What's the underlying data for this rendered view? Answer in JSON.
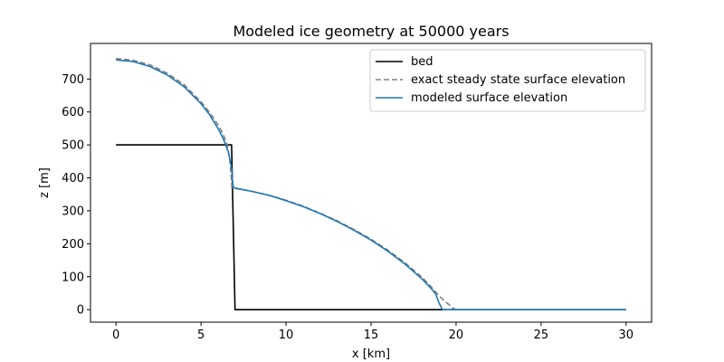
{
  "chart_data": {
    "type": "line",
    "title": "Modeled ice geometry at 50000 years",
    "xlabel": "x [km]",
    "ylabel": "z [m]",
    "xlim": [
      -1.5,
      31.5
    ],
    "ylim": [
      -38,
      808
    ],
    "xticks": [
      0,
      5,
      10,
      15,
      20,
      25,
      30
    ],
    "yticks": [
      0,
      100,
      200,
      300,
      400,
      500,
      600,
      700
    ],
    "grid": false,
    "legend_position": "top-right",
    "series": [
      {
        "name": "bed",
        "color": "#000000",
        "style": "solid",
        "x": [
          0,
          6.8,
          7.0,
          30
        ],
        "y": [
          500,
          500,
          0,
          0
        ]
      },
      {
        "name": "exact steady state surface elevation",
        "color": "#808080",
        "style": "dashed",
        "x": [
          0,
          1,
          2,
          3,
          4,
          5,
          5.5,
          6,
          6.3,
          6.55,
          6.7,
          6.8,
          6.82,
          6.9,
          7.0,
          8,
          9,
          10,
          11,
          12,
          13,
          14,
          15,
          16,
          17,
          18,
          18.5,
          19,
          19.3,
          19.6,
          19.8,
          20.0
        ],
        "y": [
          762,
          757,
          743,
          718,
          683,
          631,
          599,
          561,
          533,
          500,
          450,
          390,
          370,
          370,
          368,
          359,
          347,
          332,
          314,
          293,
          270,
          243,
          214,
          180,
          142,
          98,
          71,
          42,
          27,
          15,
          5,
          0
        ]
      },
      {
        "name": "modeled surface elevation",
        "color": "#1f77b4",
        "style": "solid",
        "x": [
          0,
          1,
          2,
          3,
          4,
          5,
          5.5,
          6,
          6.3,
          6.6,
          6.8,
          6.85,
          6.9,
          7.0,
          8,
          9,
          10,
          11,
          12,
          13,
          14,
          15,
          16,
          17,
          18,
          18.5,
          18.8,
          19.0,
          19.2,
          20,
          25,
          30
        ],
        "y": [
          758,
          753,
          738,
          713,
          677,
          625,
          592,
          550,
          520,
          480,
          430,
          390,
          372,
          369,
          359,
          347,
          331,
          313,
          292,
          268,
          241,
          211,
          177,
          138,
          93,
          66,
          48,
          20,
          0,
          0,
          0,
          0
        ]
      }
    ]
  }
}
